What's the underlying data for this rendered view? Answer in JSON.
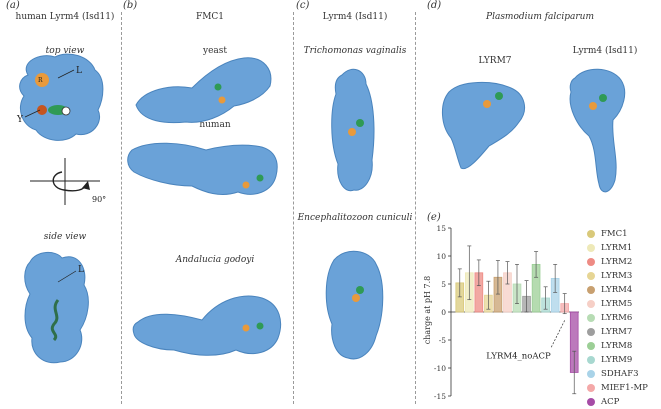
{
  "panels": {
    "a": {
      "letter": "(a)",
      "title": "human Lyrm4 (Isd11)",
      "top_view": "top view",
      "side_view": "side view",
      "rotation": "90°",
      "label_L": "L",
      "label_Y": "Y",
      "label_R": "R",
      "label_L2": "L"
    },
    "b": {
      "letter": "(b)",
      "title": "FMC1",
      "yeast": "yeast",
      "human": "human",
      "andalucia": "Andalucia godoyi"
    },
    "c": {
      "letter": "(c)",
      "title": "Lyrm4 (Isd11)",
      "trich": "Trichomonas vaginalis",
      "enceph": "Encephalitozoon cuniculi"
    },
    "d": {
      "letter": "(d)",
      "title": "Plasmodium falciparum",
      "lyrm7": "LYRM7",
      "lyrm4": "Lyrm4 (Isd11)"
    },
    "e": {
      "letter": "(e)"
    }
  },
  "colors": {
    "protein": "#6aa2d8",
    "protein_dark": "#4a84bd",
    "orange": "#e89a3c",
    "green": "#2f9a55"
  },
  "chart_data": {
    "type": "bar",
    "ylabel": "charge at pH 7.8",
    "ylim": [
      -15,
      15
    ],
    "yticks": [
      15,
      10,
      5,
      0,
      -5,
      -10,
      -15
    ],
    "annotation": "LYRM4_noACP",
    "series": [
      {
        "name": "FMC1",
        "value": 5.2,
        "err": 2.5,
        "color": "#d9c97a"
      },
      {
        "name": "LYRM1",
        "value": 7.0,
        "err": 4.8,
        "color": "#eee9b8"
      },
      {
        "name": "LYRM2",
        "value": 7.0,
        "err": 2.3,
        "color": "#ee8b84"
      },
      {
        "name": "LYRM3",
        "value": 3.0,
        "err": 2.5,
        "color": "#e6d594"
      },
      {
        "name": "LYRM4",
        "value": 6.2,
        "err": 3.0,
        "color": "#c8a070"
      },
      {
        "name": "LYRM5",
        "value": 7.0,
        "err": 2.0,
        "color": "#f6cfc6"
      },
      {
        "name": "LYRM6",
        "value": 5.0,
        "err": 3.5,
        "color": "#b7dcb4"
      },
      {
        "name": "LYRM7",
        "value": 2.8,
        "err": 2.8,
        "color": "#9e9e9e"
      },
      {
        "name": "LYRM8",
        "value": 8.5,
        "err": 2.3,
        "color": "#9ccf96"
      },
      {
        "name": "LYRM9",
        "value": 2.5,
        "err": 2.0,
        "color": "#a8d8d0"
      },
      {
        "name": "SDHAF3",
        "value": 6.0,
        "err": 2.5,
        "color": "#a9d3e8"
      },
      {
        "name": "MIEF1-MP",
        "value": 1.5,
        "err": 1.8,
        "color": "#f4a8a8"
      },
      {
        "name": "ACP",
        "value": -10.8,
        "err": 3.8,
        "color": "#a64ca6"
      }
    ]
  }
}
